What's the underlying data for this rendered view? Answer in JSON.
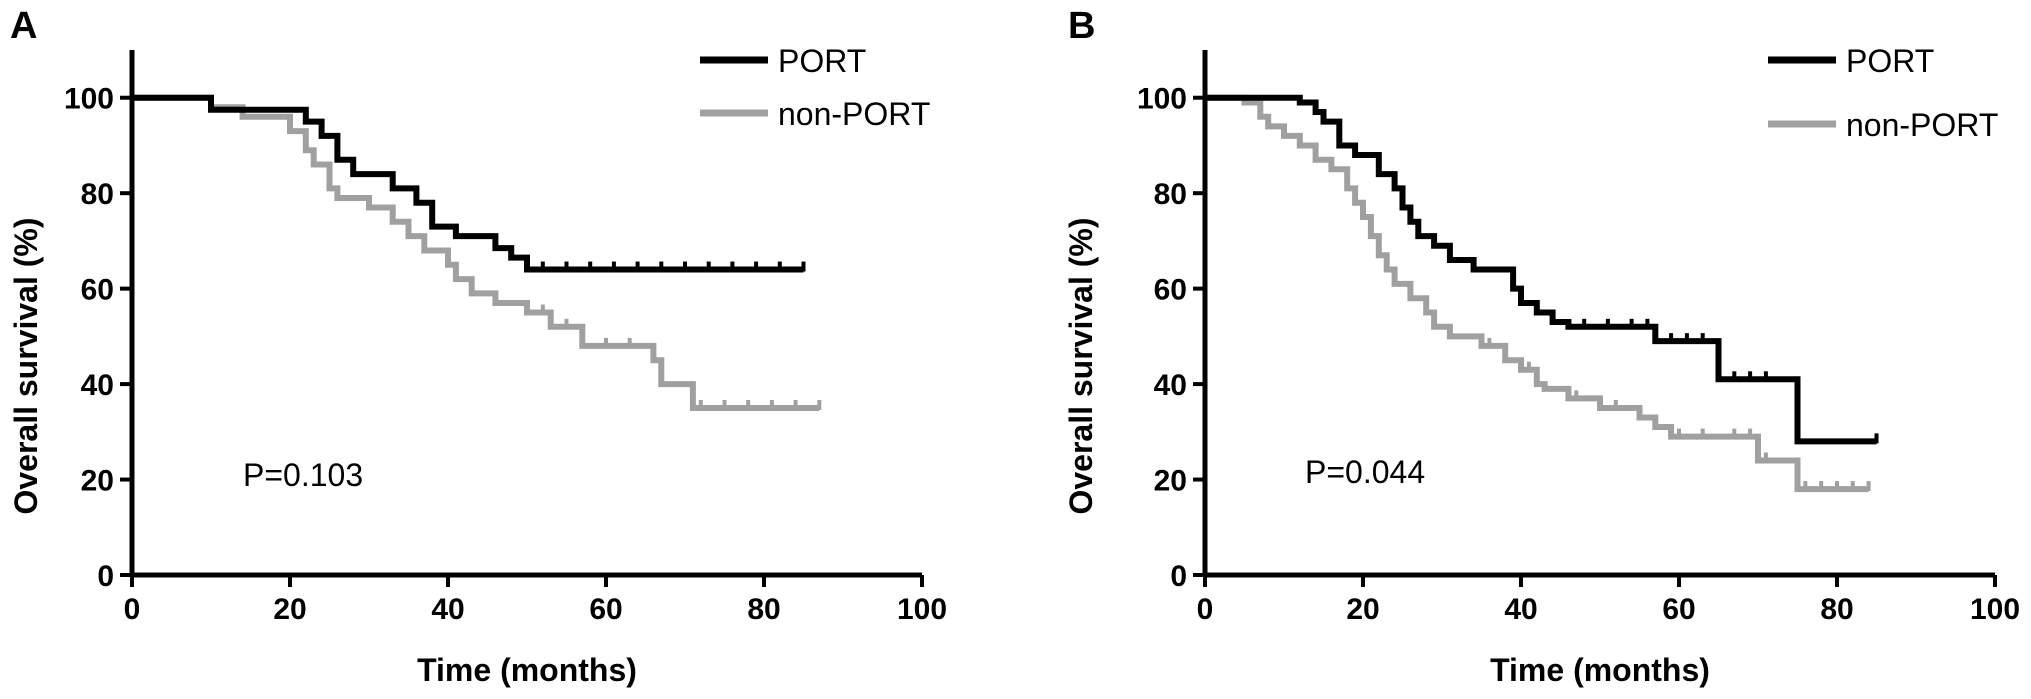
{
  "chart_data": [
    {
      "type": "line",
      "panel": "A",
      "xlabel": "Time (months)",
      "ylabel": "Overall survival (%)",
      "xlim": [
        0,
        100
      ],
      "ylim": [
        0,
        110
      ],
      "xticks": [
        0,
        20,
        40,
        60,
        80,
        100
      ],
      "yticks": [
        0,
        20,
        40,
        60,
        80,
        100
      ],
      "legend_position": "top-right",
      "annotation": "P=0.103",
      "series": [
        {
          "name": "PORT",
          "color": "#000000",
          "points": [
            [
              0,
              100
            ],
            [
              10,
              100
            ],
            [
              10,
              97.5
            ],
            [
              22,
              97.5
            ],
            [
              22,
              95
            ],
            [
              24,
              95
            ],
            [
              24,
              92
            ],
            [
              26,
              92
            ],
            [
              26,
              87
            ],
            [
              28,
              87
            ],
            [
              28,
              84
            ],
            [
              33,
              84
            ],
            [
              33,
              81
            ],
            [
              36,
              81
            ],
            [
              36,
              78
            ],
            [
              38,
              78
            ],
            [
              38,
              73
            ],
            [
              41,
              73
            ],
            [
              41,
              71
            ],
            [
              46,
              71
            ],
            [
              46,
              68.5
            ],
            [
              48,
              68.5
            ],
            [
              48,
              66.5
            ],
            [
              50,
              66.5
            ],
            [
              50,
              64
            ],
            [
              85,
              64
            ]
          ],
          "censor_x": [
            52,
            55,
            58,
            61,
            64,
            67,
            70,
            73,
            76,
            79,
            82,
            85
          ]
        },
        {
          "name": "non-PORT",
          "color": "#a0a0a0",
          "points": [
            [
              0,
              100
            ],
            [
              10,
              100
            ],
            [
              10,
              98
            ],
            [
              14,
              98
            ],
            [
              14,
              96
            ],
            [
              20,
              96
            ],
            [
              20,
              93
            ],
            [
              22,
              93
            ],
            [
              22,
              89
            ],
            [
              23,
              89
            ],
            [
              23,
              86
            ],
            [
              25,
              86
            ],
            [
              25,
              81
            ],
            [
              26,
              81
            ],
            [
              26,
              79
            ],
            [
              30,
              79
            ],
            [
              30,
              77
            ],
            [
              33,
              77
            ],
            [
              33,
              74
            ],
            [
              35,
              74
            ],
            [
              35,
              71
            ],
            [
              37,
              71
            ],
            [
              37,
              68
            ],
            [
              40,
              68
            ],
            [
              40,
              65
            ],
            [
              41,
              65
            ],
            [
              41,
              62
            ],
            [
              43,
              62
            ],
            [
              43,
              59
            ],
            [
              46,
              59
            ],
            [
              46,
              57
            ],
            [
              50,
              57
            ],
            [
              50,
              55
            ],
            [
              53,
              55
            ],
            [
              53,
              52
            ],
            [
              57,
              52
            ],
            [
              57,
              48
            ],
            [
              66,
              48
            ],
            [
              66,
              45
            ],
            [
              67,
              45
            ],
            [
              67,
              40
            ],
            [
              71,
              40
            ],
            [
              71,
              35
            ],
            [
              87,
              35
            ]
          ],
          "censor_x": [
            52,
            55,
            60,
            63,
            72,
            75,
            78,
            81,
            84,
            87
          ]
        }
      ]
    },
    {
      "type": "line",
      "panel": "B",
      "xlabel": "Time (months)",
      "ylabel": "Overall survival (%)",
      "xlim": [
        0,
        100
      ],
      "ylim": [
        0,
        110
      ],
      "xticks": [
        0,
        20,
        40,
        60,
        80,
        100
      ],
      "yticks": [
        0,
        20,
        40,
        60,
        80,
        100
      ],
      "legend_position": "top-right",
      "annotation": "P=0.044",
      "series": [
        {
          "name": "PORT",
          "color": "#000000",
          "points": [
            [
              0,
              100
            ],
            [
              12,
              100
            ],
            [
              12,
              99
            ],
            [
              14,
              99
            ],
            [
              14,
              97
            ],
            [
              15,
              97
            ],
            [
              15,
              95
            ],
            [
              17,
              95
            ],
            [
              17,
              90
            ],
            [
              19,
              90
            ],
            [
              19,
              88
            ],
            [
              22,
              88
            ],
            [
              22,
              84
            ],
            [
              24,
              84
            ],
            [
              24,
              81
            ],
            [
              25,
              81
            ],
            [
              25,
              77
            ],
            [
              26,
              77
            ],
            [
              26,
              74
            ],
            [
              27,
              74
            ],
            [
              27,
              71
            ],
            [
              29,
              71
            ],
            [
              29,
              69
            ],
            [
              31,
              69
            ],
            [
              31,
              66
            ],
            [
              34,
              66
            ],
            [
              34,
              64
            ],
            [
              39,
              64
            ],
            [
              39,
              60
            ],
            [
              40,
              60
            ],
            [
              40,
              57
            ],
            [
              42,
              57
            ],
            [
              42,
              55
            ],
            [
              44,
              55
            ],
            [
              44,
              53
            ],
            [
              46,
              53
            ],
            [
              46,
              52
            ],
            [
              57,
              52
            ],
            [
              57,
              49
            ],
            [
              65,
              49
            ],
            [
              65,
              41
            ],
            [
              75,
              41
            ],
            [
              75,
              28
            ],
            [
              85,
              28
            ]
          ],
          "censor_x": [
            48,
            51,
            54,
            56,
            59,
            61,
            63,
            67,
            69,
            71,
            85
          ]
        },
        {
          "name": "non-PORT",
          "color": "#a0a0a0",
          "points": [
            [
              0,
              100
            ],
            [
              5,
              100
            ],
            [
              5,
              99
            ],
            [
              7,
              99
            ],
            [
              7,
              96
            ],
            [
              8,
              96
            ],
            [
              8,
              94
            ],
            [
              10,
              94
            ],
            [
              10,
              92
            ],
            [
              12,
              92
            ],
            [
              12,
              90
            ],
            [
              14,
              90
            ],
            [
              14,
              87
            ],
            [
              16,
              87
            ],
            [
              16,
              85
            ],
            [
              18,
              85
            ],
            [
              18,
              81
            ],
            [
              19,
              81
            ],
            [
              19,
              78
            ],
            [
              20,
              78
            ],
            [
              20,
              75
            ],
            [
              21,
              75
            ],
            [
              21,
              71
            ],
            [
              22,
              71
            ],
            [
              22,
              67
            ],
            [
              23,
              67
            ],
            [
              23,
              64
            ],
            [
              24,
              64
            ],
            [
              24,
              61
            ],
            [
              26,
              61
            ],
            [
              26,
              58
            ],
            [
              28,
              58
            ],
            [
              28,
              55
            ],
            [
              29,
              55
            ],
            [
              29,
              52
            ],
            [
              31,
              52
            ],
            [
              31,
              50
            ],
            [
              35,
              50
            ],
            [
              35,
              48
            ],
            [
              38,
              48
            ],
            [
              38,
              45
            ],
            [
              40,
              45
            ],
            [
              40,
              43
            ],
            [
              42,
              43
            ],
            [
              42,
              40
            ],
            [
              43,
              40
            ],
            [
              43,
              39
            ],
            [
              46,
              39
            ],
            [
              46,
              37
            ],
            [
              50,
              37
            ],
            [
              50,
              35
            ],
            [
              55,
              35
            ],
            [
              55,
              33
            ],
            [
              57,
              33
            ],
            [
              57,
              31
            ],
            [
              59,
              31
            ],
            [
              59,
              29
            ],
            [
              70,
              29
            ],
            [
              70,
              24
            ],
            [
              75,
              24
            ],
            [
              75,
              18
            ],
            [
              84,
              18
            ]
          ],
          "censor_x": [
            36,
            41,
            47,
            52,
            60,
            63,
            67,
            69,
            71,
            76,
            78,
            80,
            82,
            84
          ]
        }
      ]
    }
  ]
}
